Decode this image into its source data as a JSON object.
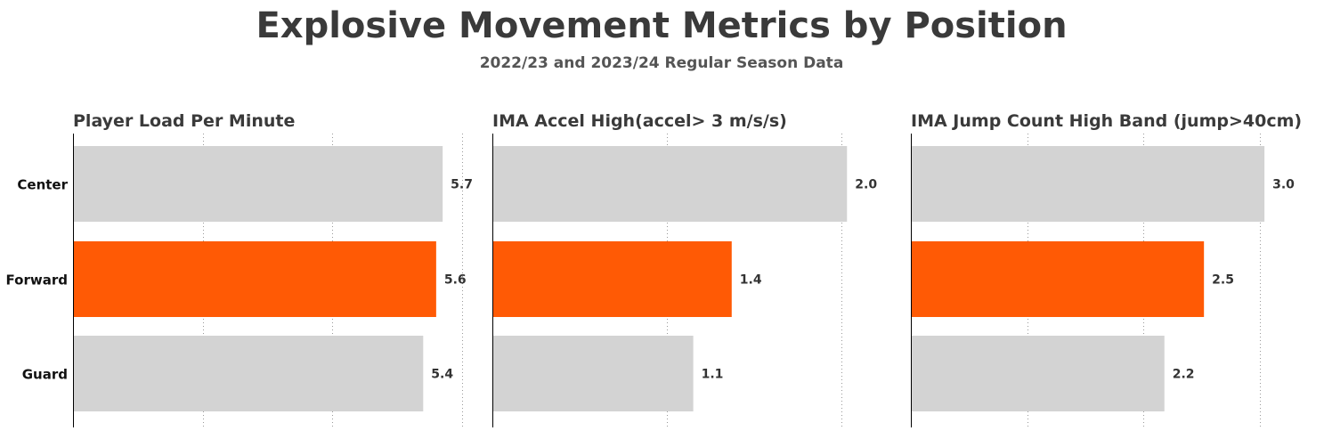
{
  "title": "Explosive Movement Metrics by Position",
  "subtitle": "2022/23 and 2023/24 Regular Season Data",
  "colors": {
    "highlight": "#ff5a05",
    "default": "#d3d3d3",
    "text": "#3a3a3a"
  },
  "chart_data": [
    {
      "type": "bar",
      "orientation": "horizontal",
      "title": "Player Load Per Minute",
      "categories": [
        "Center",
        "Forward",
        "Guard"
      ],
      "values": [
        5.7,
        5.6,
        5.4
      ],
      "value_labels": [
        "5.7",
        "5.6",
        "5.4"
      ],
      "highlight": "Forward",
      "xlim": [
        0,
        6.0
      ],
      "grid_ticks": [
        2,
        4,
        6
      ],
      "grid": true
    },
    {
      "type": "bar",
      "orientation": "horizontal",
      "title": "IMA Accel High(accel> 3 m/s/s)",
      "categories": [
        "Center",
        "Forward",
        "Guard"
      ],
      "values": [
        2.03,
        1.37,
        1.15
      ],
      "value_labels": [
        "2.0",
        "1.4",
        "1.1"
      ],
      "highlight": "Forward",
      "xlim": [
        0,
        2.1
      ],
      "grid_ticks": [
        1,
        2
      ],
      "grid": true
    },
    {
      "type": "bar",
      "orientation": "horizontal",
      "title": "IMA Jump Count High Band (jump>40cm)",
      "categories": [
        "Center",
        "Forward",
        "Guard"
      ],
      "values": [
        3.04,
        2.52,
        2.18
      ],
      "value_labels": [
        "3.0",
        "2.5",
        "2.2"
      ],
      "highlight": "Forward",
      "xlim": [
        0,
        3.2
      ],
      "grid_ticks": [
        1,
        2,
        3
      ],
      "grid": true
    }
  ]
}
